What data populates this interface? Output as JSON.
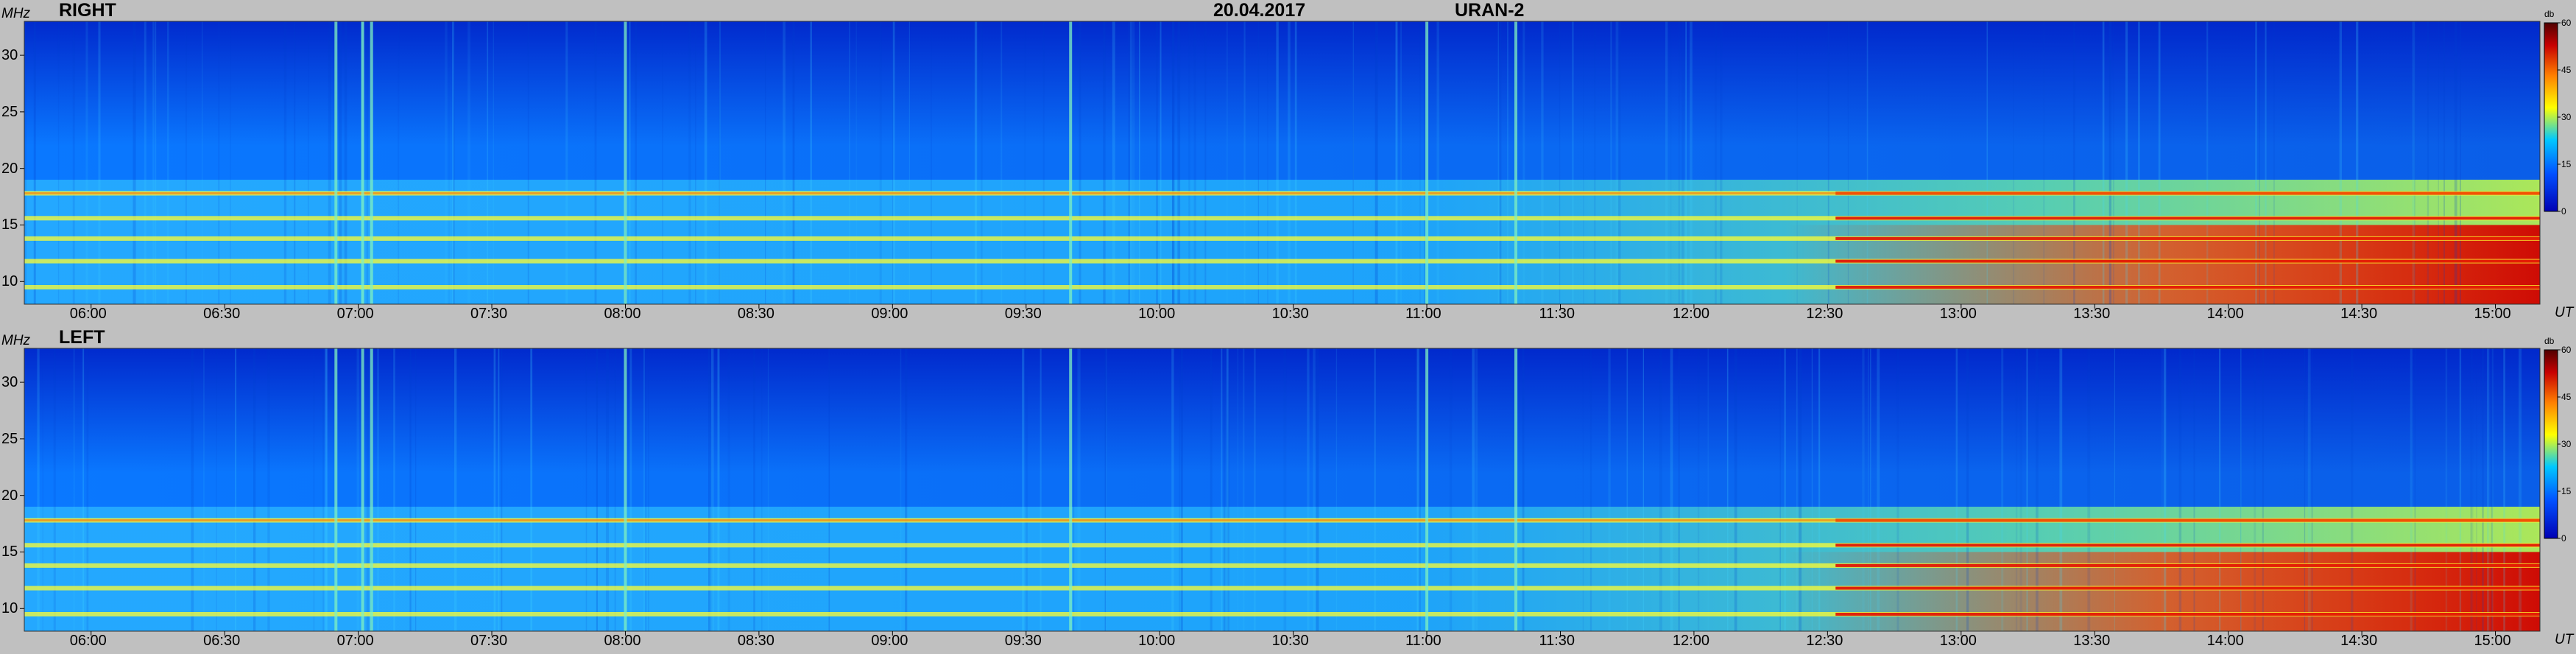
{
  "header": {
    "date": "20.04.2017",
    "instrument": "URAN-2"
  },
  "colors": {
    "background": "#c0c0c0",
    "colormap": [
      "#0000b4",
      "#0050ff",
      "#00c8ff",
      "#ffff00",
      "#ff8000",
      "#c80000",
      "#500000"
    ]
  },
  "chart_data": [
    {
      "type": "heatmap",
      "title": "RIGHT",
      "ylabel": "MHz",
      "xlabel": "UT",
      "ylim": [
        8,
        33
      ],
      "yticks": [
        "10",
        "15",
        "20",
        "25",
        "30"
      ],
      "ytick_values": [
        10,
        15,
        20,
        25,
        30
      ],
      "xlim": [
        "05:45",
        "15:10"
      ],
      "xticks": [
        "06:00",
        "06:30",
        "07:00",
        "07:30",
        "08:00",
        "08:30",
        "09:00",
        "09:30",
        "10:00",
        "10:30",
        "11:00",
        "11:30",
        "12:00",
        "12:30",
        "13:00",
        "13:30",
        "14:00",
        "14:30",
        "15:00"
      ],
      "colorbar": {
        "label": "db",
        "range": [
          0,
          60
        ],
        "ticks": [
          "0",
          "15",
          "30",
          "45",
          "60"
        ]
      },
      "features": {
        "horizontal_bands_MHz": [
          9.5,
          11.8,
          13.8,
          15.6,
          17.8
        ],
        "vertical_bursts_UT": [
          "06:55",
          "07:01",
          "07:03",
          "08:00",
          "09:40",
          "11:00",
          "11:20"
        ],
        "intensity_trend": "signal rises toward late afternoon, strongest (red) below 15 MHz after 13:30"
      }
    },
    {
      "type": "heatmap",
      "title": "LEFT",
      "ylabel": "MHz",
      "xlabel": "UT",
      "ylim": [
        8,
        33
      ],
      "yticks": [
        "10",
        "15",
        "20",
        "25",
        "30"
      ],
      "ytick_values": [
        10,
        15,
        20,
        25,
        30
      ],
      "xlim": [
        "05:45",
        "15:10"
      ],
      "xticks": [
        "06:00",
        "06:30",
        "07:00",
        "07:30",
        "08:00",
        "08:30",
        "09:00",
        "09:30",
        "10:00",
        "10:30",
        "11:00",
        "11:30",
        "12:00",
        "12:30",
        "13:00",
        "13:30",
        "14:00",
        "14:30",
        "15:00"
      ],
      "colorbar": {
        "label": "db",
        "range": [
          0,
          60
        ],
        "ticks": [
          "0",
          "15",
          "30",
          "45",
          "60"
        ]
      },
      "features": {
        "horizontal_bands_MHz": [
          9.5,
          11.8,
          13.8,
          15.6,
          17.8
        ],
        "vertical_bursts_UT": [
          "06:55",
          "07:01",
          "07:03",
          "08:00",
          "09:40",
          "11:00",
          "11:20"
        ],
        "intensity_trend": "signal rises toward late afternoon, strongest (red) below 15 MHz after 13:30"
      }
    }
  ]
}
